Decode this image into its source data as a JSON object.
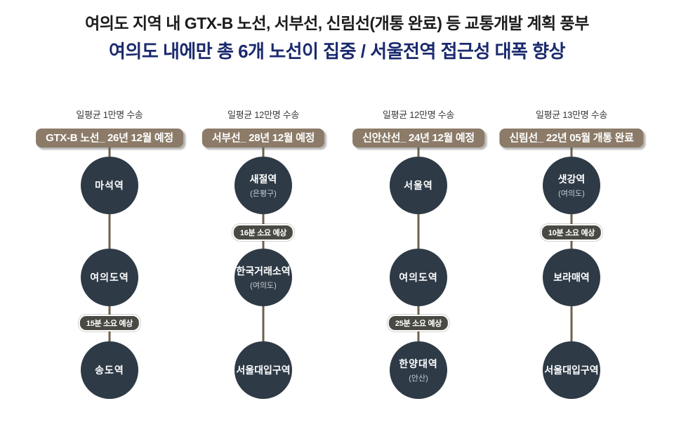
{
  "title": {
    "line1": "여의도 지역 내 GTX-B 노선, 서부선, 신림선(개통 완료) 등 교통개발 계획 풍부",
    "line2": "여의도 내에만 총 6개 노선이 집중 / 서울전역 접근성 대폭 향상"
  },
  "colors": {
    "title_line1": "#1c1c1c",
    "title_line2": "#1b2a6e",
    "station_circle": "#2e3a46",
    "line_badge": "#8b7b68",
    "connector_line": "#6f604c",
    "time_pill": "#4a4a45"
  },
  "columns": [
    {
      "avg": "일평균 1만명 수송",
      "badge": "GTX-B 노선_ 26년 12월 예정",
      "stations": [
        {
          "name": "마석역",
          "sub": ""
        },
        {
          "name": "여의도역",
          "sub": ""
        },
        {
          "name": "송도역",
          "sub": ""
        }
      ],
      "time_badge": {
        "label": "15분 소요 예상",
        "between": "station2-station3"
      }
    },
    {
      "avg": "일평균 12만명 수송",
      "badge": "서부선_ 28년 12월 예정",
      "stations": [
        {
          "name": "새절역",
          "sub": "(은평구)"
        },
        {
          "name": "한국거래소역",
          "sub": "(여의도)"
        },
        {
          "name": "서울대입구역",
          "sub": ""
        }
      ],
      "time_badge": {
        "label": "16분 소요 예상",
        "between": "station1-station2"
      }
    },
    {
      "avg": "일평균 12만명 수송",
      "badge": "신안산선_ 24년 12월 예정",
      "stations": [
        {
          "name": "서울역",
          "sub": ""
        },
        {
          "name": "여의도역",
          "sub": ""
        },
        {
          "name": "한양대역",
          "sub": "(안산)"
        }
      ],
      "time_badge": {
        "label": "25분 소요 예상",
        "between": "station2-station3"
      }
    },
    {
      "avg": "일평균 13만명 수송",
      "badge": "신림선_ 22년 05월 개통 완료",
      "stations": [
        {
          "name": "샛강역",
          "sub": "(여의도)"
        },
        {
          "name": "보라매역",
          "sub": ""
        },
        {
          "name": "서울대입구역",
          "sub": ""
        }
      ],
      "time_badge": {
        "label": "10분 소요 예상",
        "between": "station1-station2"
      }
    }
  ]
}
